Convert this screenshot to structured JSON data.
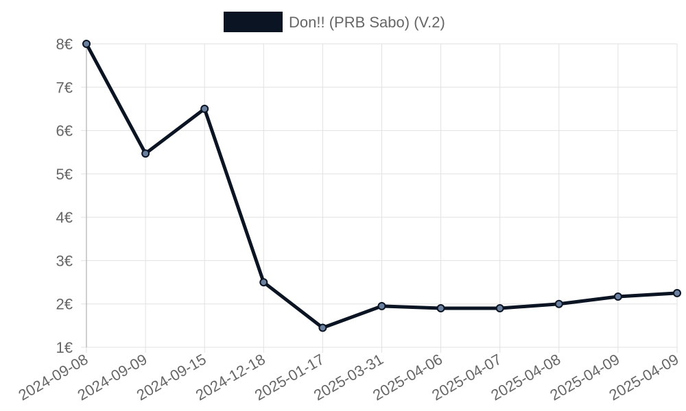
{
  "chart_data": {
    "type": "line",
    "x": [
      "2024-09-08",
      "2024-09-09",
      "2024-09-15",
      "2024-12-18",
      "2025-01-17",
      "2025-03-31",
      "2025-04-06",
      "2025-04-07",
      "2025-04-08",
      "2025-04-09",
      "2025-04-09"
    ],
    "series": [
      {
        "name": "Don!! (PRB Sabo) (V.2)",
        "values": [
          8.0,
          5.47,
          6.5,
          2.5,
          1.45,
          1.95,
          1.9,
          1.9,
          2.0,
          2.17,
          2.25
        ],
        "color": "#0b1422",
        "point_fill": "#6b7f9e"
      }
    ],
    "ylim": [
      1,
      8
    ],
    "y_ticks": [
      "1€",
      "2€",
      "3€",
      "4€",
      "5€",
      "6€",
      "7€",
      "8€"
    ],
    "y_unit": "€",
    "legend_position": "top-center",
    "grid": true
  }
}
